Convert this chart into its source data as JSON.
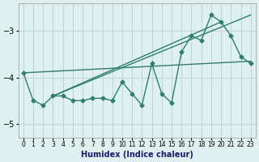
{
  "xlabel": "Humidex (Indice chaleur)",
  "x_values": [
    0,
    1,
    2,
    3,
    4,
    5,
    6,
    7,
    8,
    9,
    10,
    11,
    12,
    13,
    14,
    15,
    16,
    17,
    18,
    19,
    20,
    21,
    22,
    23
  ],
  "line1_y": [
    -3.9,
    -4.5,
    -4.6,
    -4.4,
    -4.4,
    -4.5,
    -4.5,
    -4.45,
    -4.45,
    -4.5,
    -4.1,
    -4.35,
    -4.6,
    -3.7,
    -4.35,
    -4.55,
    -3.45,
    -3.1,
    -3.2,
    -2.65,
    -2.8,
    -3.1,
    -3.55,
    -3.7
  ],
  "trend1_x": [
    0,
    23
  ],
  "trend1_y": [
    -3.9,
    -3.65
  ],
  "trend2_x": [
    3,
    23
  ],
  "trend2_y": [
    -4.4,
    -2.65
  ],
  "trend3_x": [
    3,
    20
  ],
  "trend3_y": [
    -4.4,
    -2.8
  ],
  "line_color": "#2e7d6e",
  "bg_color": "#dff0f0",
  "grid_color": "#c0d8d8",
  "ylim": [
    -5.3,
    -2.4
  ],
  "yticks": [
    -5,
    -4,
    -3
  ],
  "xlim": [
    -0.5,
    23.5
  ]
}
